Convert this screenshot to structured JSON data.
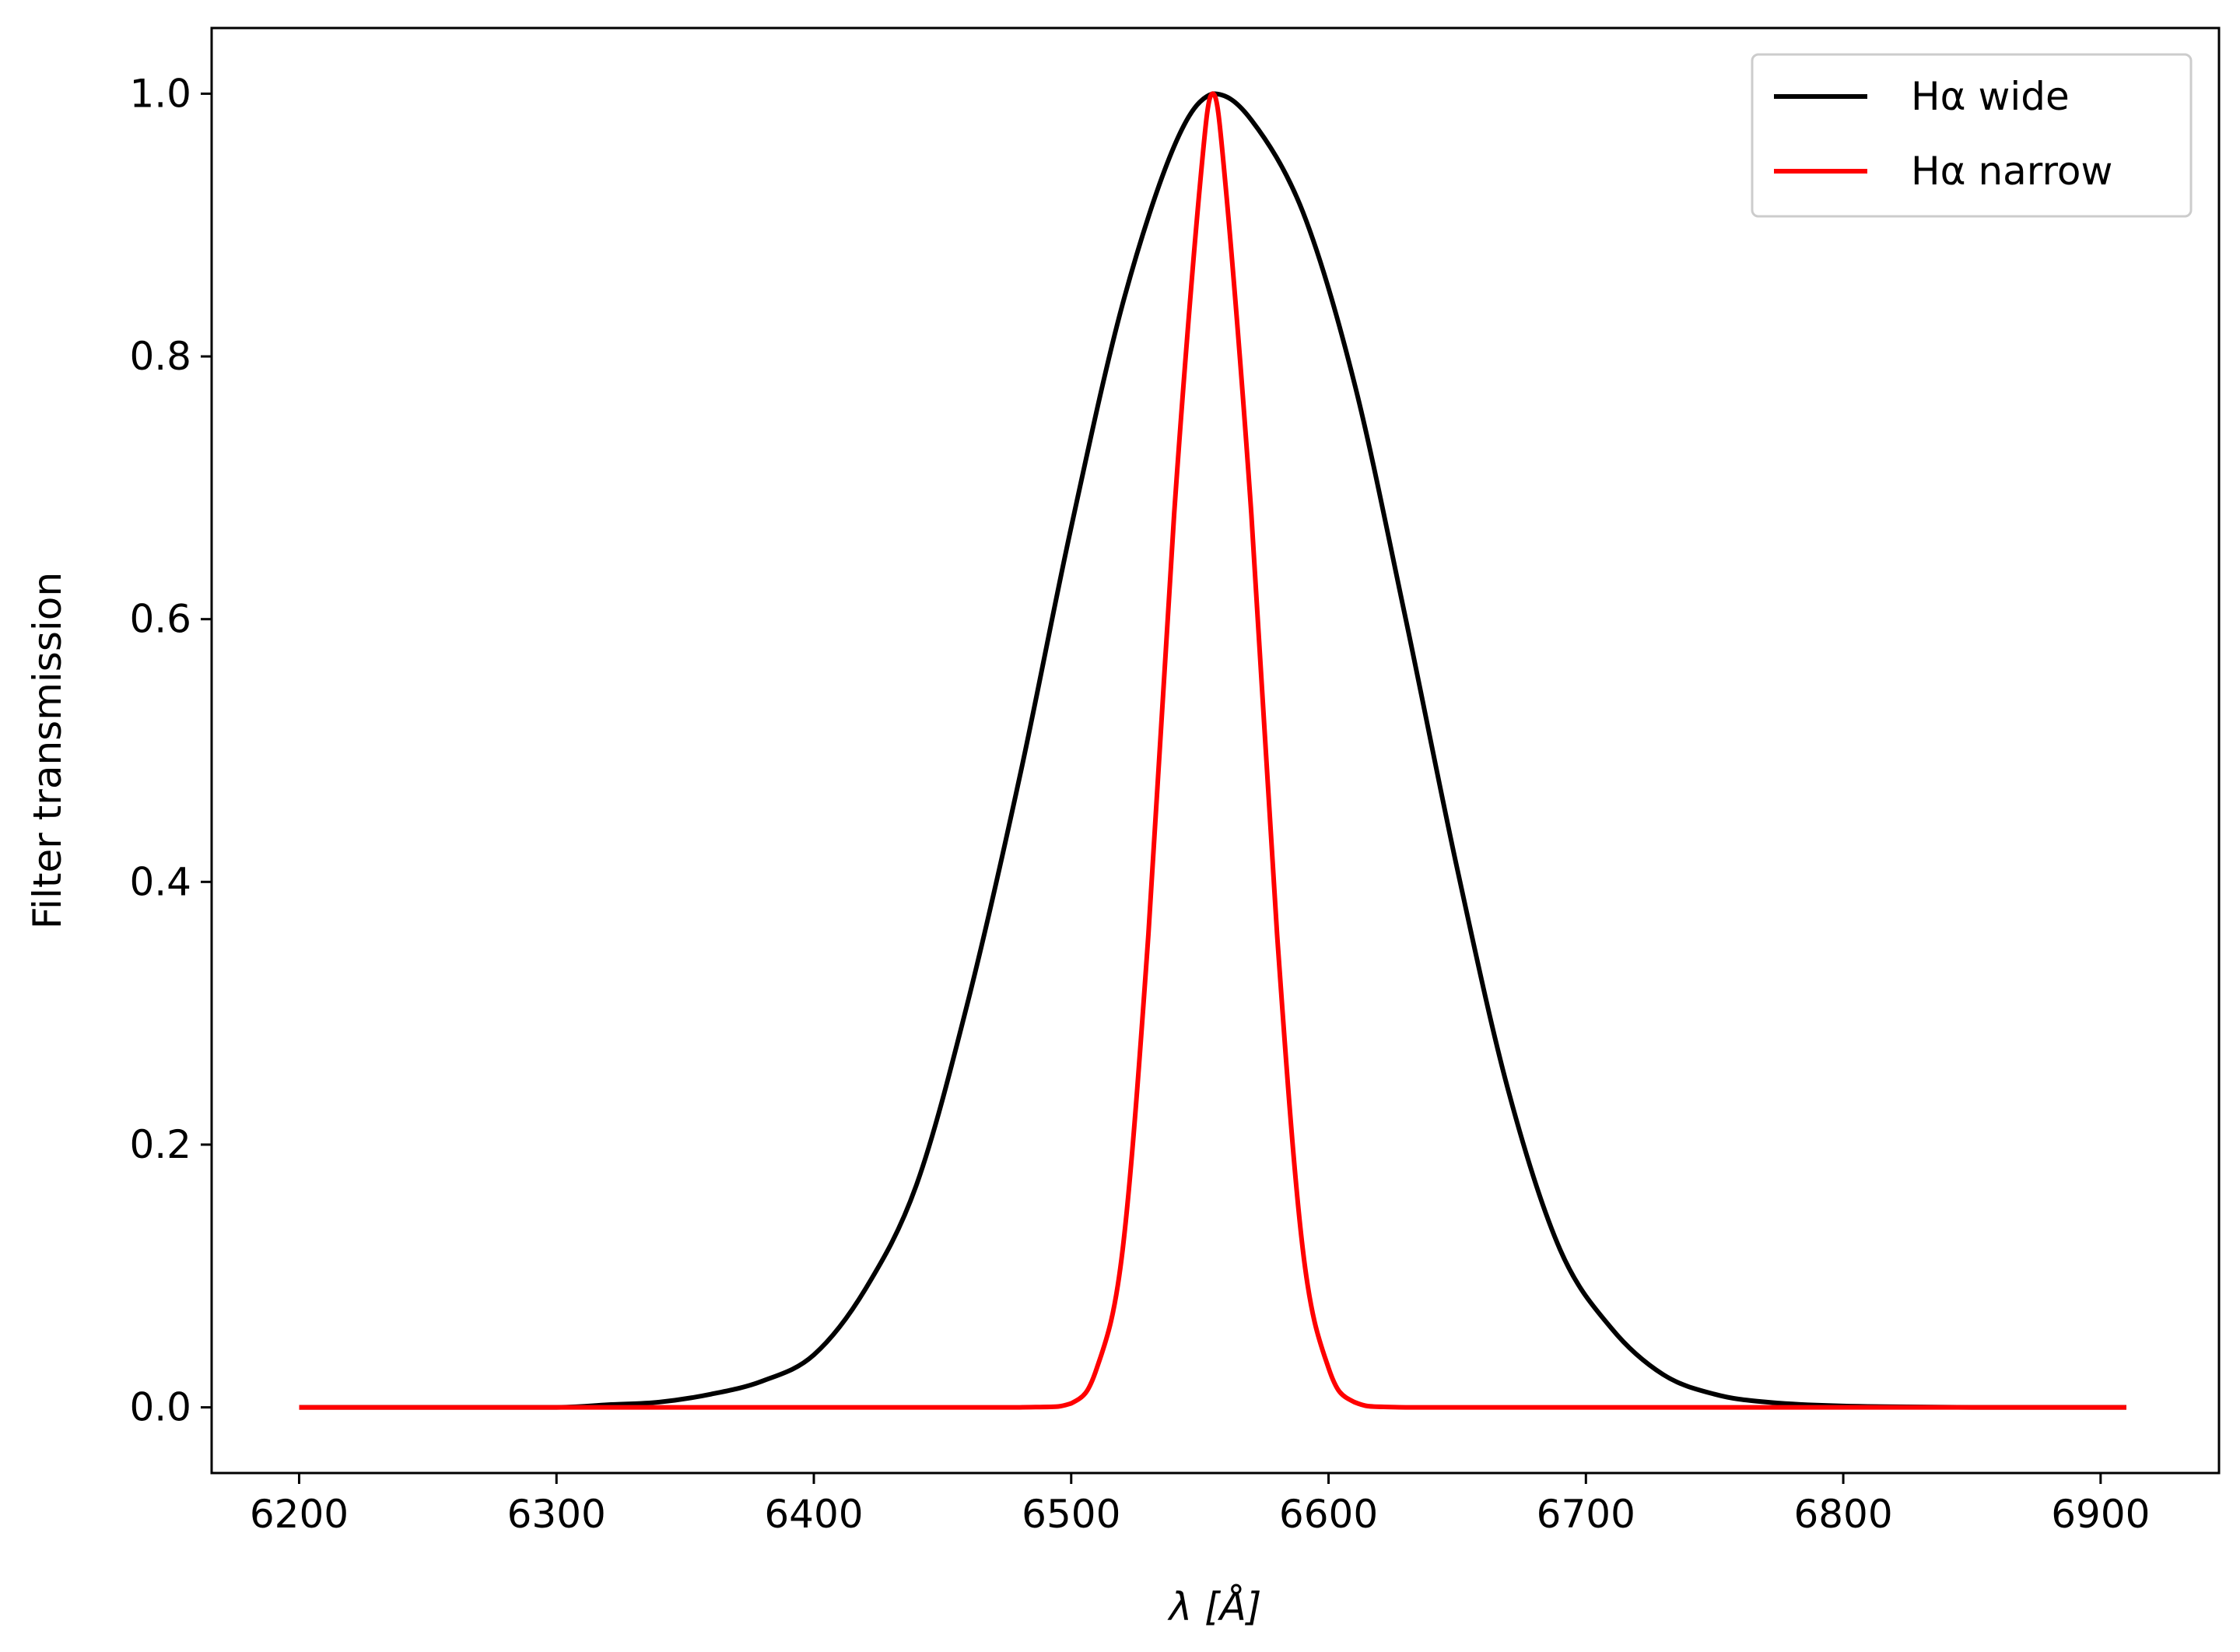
{
  "chart_data": {
    "type": "line",
    "title": "",
    "xlabel": "λ [Å]",
    "ylabel": "Filter transmission",
    "xlim": [
      6166,
      6946
    ],
    "ylim": [
      -0.05,
      1.05
    ],
    "xticks": [
      6200,
      6300,
      6400,
      6500,
      6600,
      6700,
      6800,
      6900
    ],
    "xtick_labels": [
      "6200",
      "6300",
      "6400",
      "6500",
      "6600",
      "6700",
      "6800",
      "6900"
    ],
    "yticks": [
      0.0,
      0.2,
      0.4,
      0.6,
      0.8,
      1.0
    ],
    "ytick_labels": [
      "0.0",
      "0.2",
      "0.4",
      "0.6",
      "0.8",
      "1.0"
    ],
    "grid": false,
    "legend_position": "top-right",
    "series": [
      {
        "name": "Hα wide",
        "color": "#000000",
        "x": [
          6200,
          6250,
          6300,
          6320,
          6340,
          6360,
          6380,
          6400,
          6420,
          6440,
          6460,
          6480,
          6500,
          6520,
          6540,
          6555,
          6570,
          6590,
          6610,
          6630,
          6650,
          6670,
          6690,
          6710,
          6730,
          6750,
          6770,
          6800,
          6850,
          6910
        ],
        "y": [
          0.0,
          0.0,
          0.0,
          0.002,
          0.004,
          0.01,
          0.02,
          0.04,
          0.09,
          0.17,
          0.31,
          0.48,
          0.67,
          0.84,
          0.96,
          1.0,
          0.98,
          0.91,
          0.78,
          0.6,
          0.41,
          0.24,
          0.12,
          0.06,
          0.025,
          0.01,
          0.004,
          0.001,
          0.0,
          0.0
        ]
      },
      {
        "name": "Hα narrow",
        "color": "#ff0000",
        "x": [
          6200,
          6300,
          6400,
          6480,
          6500,
          6510,
          6520,
          6530,
          6540,
          6550,
          6555,
          6560,
          6570,
          6580,
          6590,
          6600,
          6610,
          6630,
          6700,
          6800,
          6910
        ],
        "y": [
          0.0,
          0.0,
          0.0,
          0.0,
          0.003,
          0.03,
          0.12,
          0.36,
          0.68,
          0.93,
          1.0,
          0.93,
          0.68,
          0.36,
          0.12,
          0.03,
          0.004,
          0.0,
          0.0,
          0.0,
          0.0
        ]
      }
    ]
  }
}
